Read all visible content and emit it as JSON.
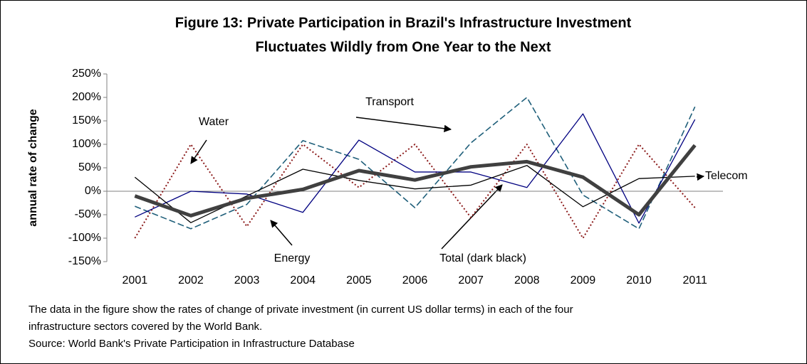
{
  "chart_data": {
    "type": "line",
    "title": [
      "Figure 13: Private Participation in Brazil's Infrastructure Investment",
      "Fluctuates Wildly from One Year to the Next"
    ],
    "ylabel": "annual rate of change",
    "categories": [
      "2001",
      "2002",
      "2003",
      "2004",
      "2005",
      "2006",
      "2007",
      "2008",
      "2009",
      "2010",
      "2011"
    ],
    "ylim": [
      -150,
      250
    ],
    "yticks": [
      {
        "value": -150,
        "label": "-150%"
      },
      {
        "value": -100,
        "label": "-100%"
      },
      {
        "value": -50,
        "label": "-50%"
      },
      {
        "value": 0,
        "label": "0%"
      },
      {
        "value": 50,
        "label": "50%"
      },
      {
        "value": 100,
        "label": "100%"
      },
      {
        "value": 150,
        "label": "150%"
      },
      {
        "value": 200,
        "label": "200%"
      },
      {
        "value": 250,
        "label": "250%"
      }
    ],
    "grid": false,
    "series": [
      {
        "name": "Water",
        "color": "#8b1a1a",
        "style": "dotted",
        "values": [
          -100,
          100,
          -75,
          100,
          8,
          100,
          -56,
          100,
          -100,
          100,
          -35
        ]
      },
      {
        "name": "Transport",
        "color": "#1f5f7a",
        "style": "dashed",
        "values": [
          -32,
          -80,
          -28,
          108,
          68,
          -35,
          103,
          200,
          -8,
          -80,
          180
        ]
      },
      {
        "name": "Energy",
        "color": "#000080",
        "style": "solid",
        "values": [
          -55,
          0,
          -6,
          -45,
          109,
          41,
          41,
          8,
          165,
          -68,
          153
        ]
      },
      {
        "name": "Telecom",
        "color": "#000000",
        "style": "solid",
        "values": [
          30,
          -67,
          -10,
          47,
          23,
          5,
          13,
          55,
          -33,
          27,
          32
        ]
      },
      {
        "name": "Total (dark black)",
        "color": "#404040",
        "style": "thick",
        "values": [
          -10,
          -52,
          -15,
          4,
          44,
          24,
          52,
          63,
          30,
          -50,
          98
        ]
      }
    ],
    "notes": [
      "The data in the figure show the rates of change of private investment (in current US dollar terms) in each of the four",
      "infrastructure sectors covered by the World Bank.",
      "Source: World Bank's Private Participation in Infrastructure Database"
    ]
  }
}
